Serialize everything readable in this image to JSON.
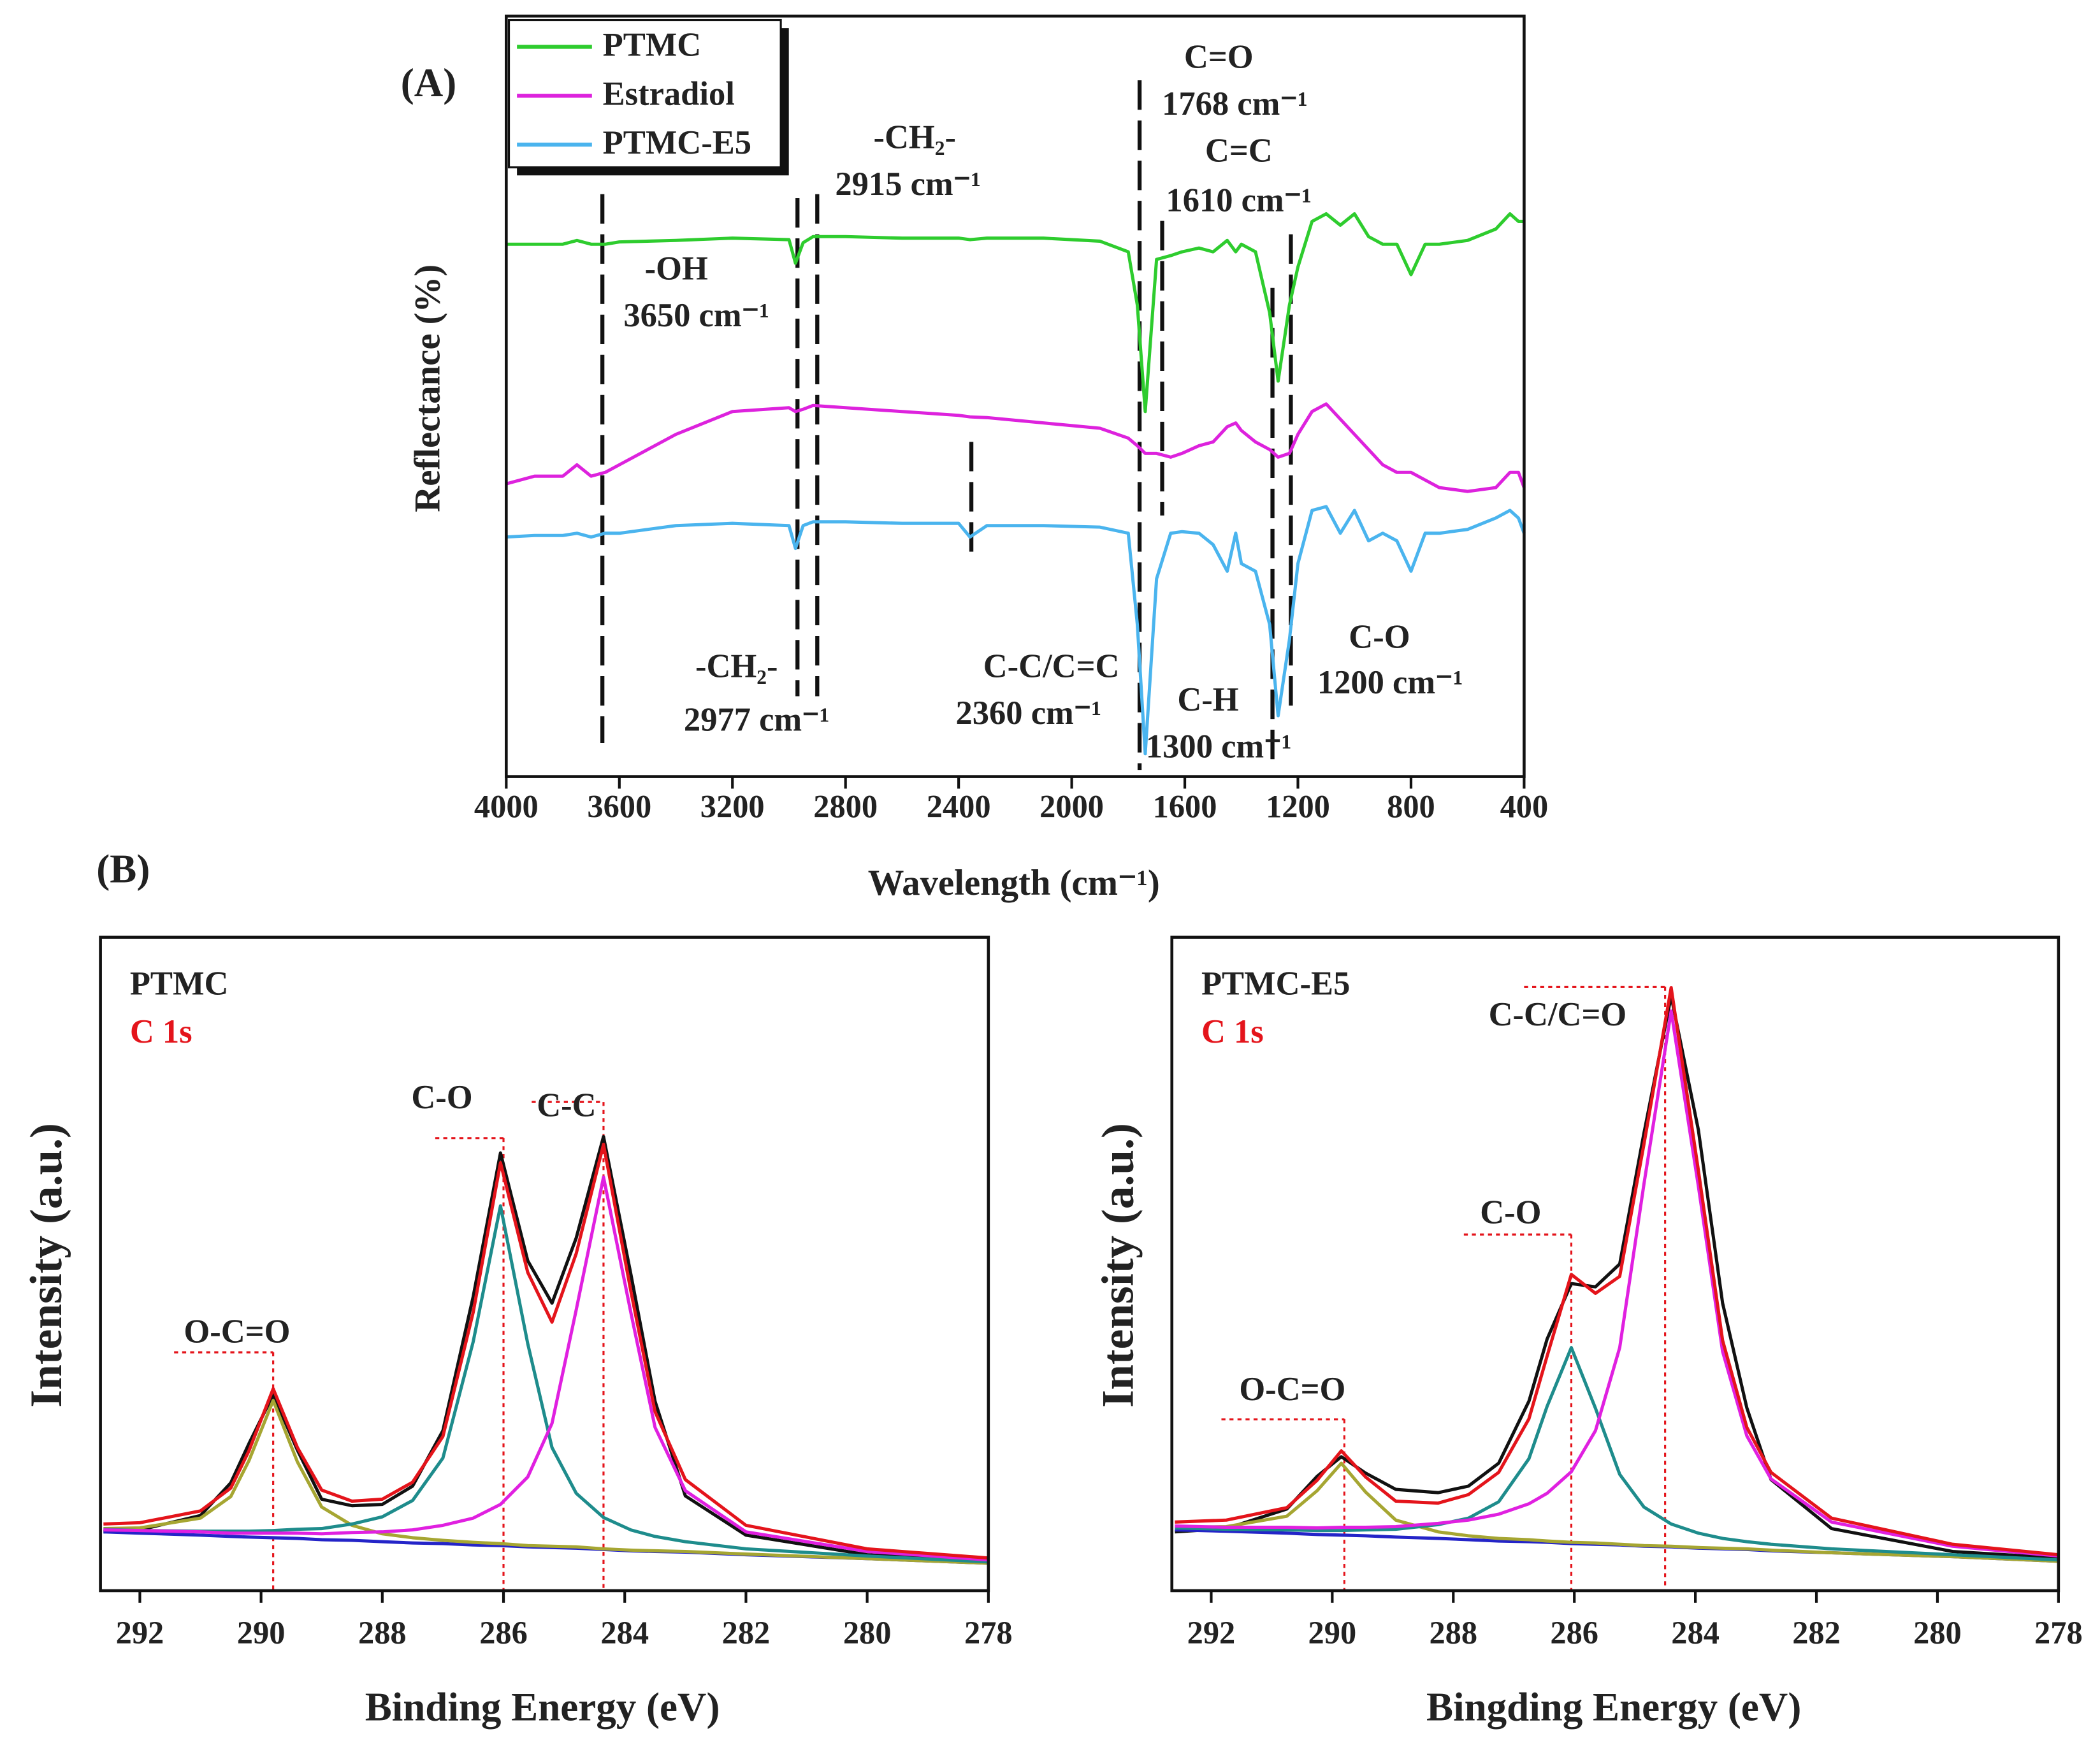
{
  "chart_data": [
    {
      "type": "line",
      "panel_label": "(A)",
      "x_label": "Wavelength (cm⁻¹)",
      "y_label": "Reflectance (%)",
      "xlim": [
        4000,
        400
      ],
      "xticks": [
        4000,
        3600,
        3200,
        2800,
        2400,
        2000,
        1600,
        1200,
        800,
        400
      ],
      "ylim": [
        0,
        100
      ],
      "legend": "upper left",
      "x": [
        4000,
        3900,
        3800,
        3750,
        3700,
        3650,
        3600,
        3400,
        3200,
        3000,
        2977,
        2950,
        2915,
        2800,
        2600,
        2400,
        2360,
        2300,
        2100,
        1900,
        1800,
        1768,
        1740,
        1700,
        1650,
        1610,
        1550,
        1500,
        1450,
        1420,
        1400,
        1350,
        1300,
        1270,
        1230,
        1200,
        1150,
        1100,
        1050,
        1000,
        950,
        900,
        850,
        800,
        750,
        700,
        600,
        500,
        450,
        420,
        400
      ],
      "series": [
        {
          "name": "PTMC",
          "color": "#2ecc2e",
          "values": [
            70,
            70,
            70,
            70.5,
            70,
            70,
            70.3,
            70.5,
            70.8,
            70.6,
            67.5,
            70.2,
            71,
            71,
            70.8,
            70.8,
            70.6,
            70.8,
            70.8,
            70.4,
            69,
            62,
            48,
            68,
            68.5,
            69,
            69.5,
            69,
            70.5,
            69,
            70,
            69,
            61,
            52,
            62,
            67,
            73,
            74,
            72.5,
            74,
            71,
            70,
            70,
            66,
            70,
            70,
            70.5,
            72,
            74,
            73,
            73
          ]
        },
        {
          "name": "Estradiol",
          "color": "#dd22dd",
          "values": [
            38.5,
            39.5,
            39.5,
            41,
            39.5,
            40,
            41,
            45,
            48,
            48.5,
            48,
            48.3,
            48.8,
            48.5,
            48,
            47.5,
            47.3,
            47.2,
            46.5,
            45.8,
            44.5,
            43.5,
            42.5,
            42.5,
            42,
            42.5,
            43.5,
            44,
            46,
            46.5,
            45.5,
            44,
            43,
            42,
            42.5,
            45,
            48,
            49,
            47,
            45,
            43,
            41,
            40,
            40,
            39,
            38,
            37.5,
            38,
            40,
            40,
            38
          ]
        },
        {
          "name": "PTMC-E5",
          "color": "#4ab4ee",
          "values": [
            31.5,
            31.7,
            31.7,
            32,
            31.5,
            32,
            32,
            33,
            33.3,
            33,
            30,
            33,
            33.5,
            33.5,
            33.3,
            33.3,
            31.5,
            33,
            33,
            32.8,
            32,
            20,
            3,
            26,
            32,
            32.2,
            32,
            30.5,
            27,
            32,
            28,
            27,
            20,
            8,
            18,
            28,
            35,
            35.5,
            32,
            35,
            31,
            32,
            31,
            27,
            32,
            32,
            32.5,
            34,
            35,
            34,
            32
          ]
        }
      ],
      "markers": [
        3660,
        2970,
        2900,
        2355,
        1760,
        1680,
        1290,
        1225
      ],
      "annotations": [
        "-OH",
        "3650 cm⁻¹",
        "-CH₂-",
        "2915 cm⁻¹",
        "C=O",
        "1768 cm⁻¹",
        "C=C",
        "1610 cm⁻¹",
        "-CH₂-",
        "2977 cm⁻¹",
        "C-C/C=C",
        "2360 cm⁻¹",
        "C-H",
        "1300 cm⁻¹",
        "C-O",
        "1200 cm⁻¹"
      ]
    },
    {
      "type": "line",
      "panel_label": "(B)",
      "x_label": "Binding Energy (eV)",
      "y_label": "Intensity (a.u.)",
      "xlim": [
        292.65,
        278
      ],
      "xticks": [
        292,
        290,
        288,
        286,
        284,
        282,
        280,
        278
      ],
      "ylim": [
        0,
        100
      ],
      "x": [
        292.6,
        292,
        291,
        290.5,
        290.2,
        289.8,
        289.4,
        289,
        288.5,
        288,
        287.5,
        287,
        286.5,
        286.05,
        285.6,
        285.2,
        284.8,
        284.35,
        283.9,
        283.5,
        283,
        282,
        280,
        278
      ],
      "series": [
        {
          "color": "#111111",
          "values": [
            9.0,
            9.3,
            11.5,
            16.5,
            22.5,
            30.0,
            21.5,
            14.0,
            13.0,
            13.2,
            16.0,
            24.5,
            45.0,
            67.0,
            50.5,
            44.0,
            54.0,
            69.5,
            48.5,
            29.0,
            14.5,
            8.5,
            5.5,
            4.5
          ]
        },
        {
          "color": "#2424c8",
          "values": [
            9.0,
            8.8,
            8.5,
            8.3,
            8.2,
            8.1,
            8.0,
            7.8,
            7.7,
            7.5,
            7.3,
            7.2,
            7.0,
            6.9,
            6.7,
            6.6,
            6.5,
            6.3,
            6.1,
            6.0,
            5.9,
            5.5,
            4.9,
            4.2
          ]
        },
        {
          "color": "#a6a632",
          "values": [
            9.5,
            9.6,
            11.1,
            14.4,
            19.9,
            29.1,
            19.7,
            12.8,
            10.0,
            8.7,
            8.1,
            7.7,
            7.4,
            7.2,
            6.9,
            6.8,
            6.7,
            6.4,
            6.2,
            6.1,
            6.0,
            5.6,
            4.9,
            4.2
          ]
        },
        {
          "color": "#1e8c8c",
          "values": [
            9.4,
            9.2,
            9.1,
            9.1,
            9.1,
            9.2,
            9.4,
            9.5,
            10.2,
            11.3,
            13.8,
            20.3,
            38.1,
            58.9,
            37.8,
            21.9,
            14.9,
            11.2,
            9.3,
            8.3,
            7.5,
            6.4,
            5.3,
            4.4
          ]
        },
        {
          "color": "#e020e0",
          "values": [
            9.3,
            9.2,
            9.0,
            8.8,
            8.8,
            8.8,
            8.8,
            8.7,
            8.9,
            9.0,
            9.3,
            10.0,
            11.1,
            13.2,
            17.4,
            25.6,
            43.0,
            63.3,
            42.6,
            25.0,
            15.3,
            9.0,
            6.0,
            4.7
          ]
        },
        {
          "color": "#e4141b",
          "values": [
            10.2,
            10.4,
            12.2,
            15.7,
            21.4,
            30.9,
            21.9,
            15.4,
            13.7,
            14.0,
            16.6,
            23.6,
            42.6,
            65.5,
            48.7,
            41.1,
            51.6,
            68.3,
            45.9,
            27.4,
            17.0,
            10.0,
            6.4,
            5.0
          ]
        }
      ],
      "markers": [
        289.8,
        286.0,
        284.35
      ],
      "annotations": [
        "PTMC",
        "C 1s",
        "O-C=O",
        "C-O",
        "C-C"
      ]
    },
    {
      "type": "line",
      "x_label": "Bingding Energy (eV)",
      "y_label": "Intensity (a.u.)",
      "xlim": [
        292.65,
        278
      ],
      "xticks": [
        292,
        290,
        288,
        286,
        284,
        282,
        280,
        278
      ],
      "ylim": [
        0,
        100
      ],
      "x": [
        292.6,
        291.75,
        290.75,
        290.25,
        289.85,
        289.45,
        288.95,
        288.25,
        287.75,
        287.25,
        286.75,
        286.45,
        286.05,
        285.65,
        285.25,
        284.85,
        284.4,
        283.95,
        283.55,
        283.15,
        282.75,
        281.75,
        279.75,
        278
      ],
      "series": [
        {
          "color": "#111111",
          "values": [
            9.0,
            9.5,
            12.5,
            17.5,
            20.5,
            18.0,
            15.5,
            15.0,
            16.0,
            19.5,
            29.0,
            38.5,
            47.0,
            46.5,
            50.0,
            70.0,
            91.0,
            70.5,
            44.0,
            28.0,
            17.0,
            9.5,
            6.0,
            5.0
          ]
        },
        {
          "color": "#2424c8",
          "values": [
            9.3,
            9.1,
            8.8,
            8.6,
            8.5,
            8.4,
            8.2,
            8.0,
            7.8,
            7.6,
            7.5,
            7.4,
            7.2,
            7.1,
            7.0,
            6.8,
            6.7,
            6.5,
            6.4,
            6.3,
            6.1,
            5.8,
            5.2,
            4.5
          ]
        },
        {
          "color": "#a6a632",
          "values": [
            9.7,
            9.8,
            11.4,
            15.3,
            19.5,
            15.1,
            10.8,
            9.0,
            8.4,
            8.0,
            7.8,
            7.6,
            7.4,
            7.3,
            7.1,
            6.9,
            6.8,
            6.6,
            6.5,
            6.4,
            6.2,
            5.8,
            5.2,
            4.5
          ]
        },
        {
          "color": "#1e8c8c",
          "values": [
            9.6,
            9.4,
            9.3,
            9.2,
            9.2,
            9.3,
            9.4,
            10.1,
            11.1,
            13.6,
            20.2,
            28.2,
            37.2,
            27.9,
            17.8,
            12.8,
            10.2,
            8.8,
            8.0,
            7.5,
            7.1,
            6.4,
            5.5,
            4.7
          ]
        },
        {
          "color": "#e020e0",
          "values": [
            9.9,
            9.7,
            9.7,
            9.6,
            9.7,
            9.7,
            9.8,
            10.3,
            10.8,
            11.7,
            13.3,
            14.9,
            18.2,
            24.5,
            37.2,
            62.2,
            88.7,
            61.9,
            36.6,
            23.7,
            17.1,
            10.5,
            6.8,
            5.3
          ]
        },
        {
          "color": "#e4141b",
          "values": [
            10.5,
            10.8,
            12.7,
            16.9,
            21.4,
            17.4,
            13.7,
            13.4,
            14.7,
            18.1,
            26.3,
            35.9,
            48.4,
            45.5,
            48.1,
            68.3,
            92.3,
            64.3,
            38.3,
            25.0,
            18.1,
            11.1,
            7.1,
            5.5
          ]
        }
      ],
      "markers": [
        289.8,
        286.05,
        284.5
      ],
      "annotations": [
        "PTMC-E5",
        "C 1s",
        "C-C/C=O",
        "C-O",
        "O-C=O"
      ]
    }
  ]
}
